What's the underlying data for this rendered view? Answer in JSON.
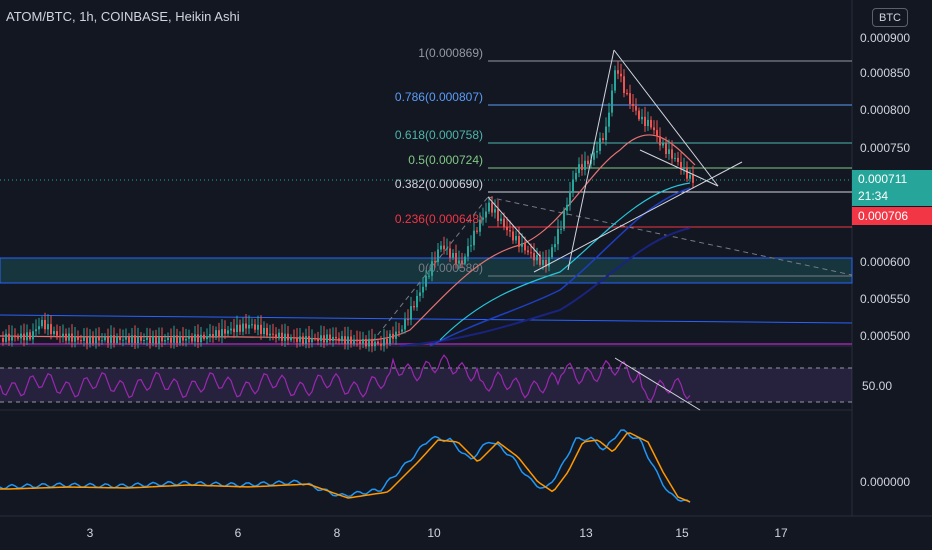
{
  "header": {
    "title": "ATOM/BTC, 1h, COINBASE, Heikin Ashi",
    "currency": "BTC"
  },
  "price_axis": {
    "ticks": [
      "0.000900",
      "0.000850",
      "0.000800",
      "0.000750",
      "0.000600",
      "0.000550",
      "0.000500"
    ],
    "current_price": "0.000711",
    "countdown": "21:34",
    "alert_price": "0.000706"
  },
  "fib_levels": [
    {
      "label": "1(0.000869)",
      "color": "#9598a1"
    },
    {
      "label": "0.786(0.000807)",
      "color": "#5b9cf6"
    },
    {
      "label": "0.618(0.000758)",
      "color": "#4db6ac"
    },
    {
      "label": "0.5(0.000724)",
      "color": "#81c784"
    },
    {
      "label": "0.382(0.000690)",
      "color": "#d1d4dc"
    },
    {
      "label": "0.236(0.000648)",
      "color": "#f23645"
    },
    {
      "label": "0(0.000580)",
      "color": "#787b86"
    }
  ],
  "rsi_panel": {
    "level_label": "50.00",
    "line_color": "#9c27b0"
  },
  "oscillator_panel": {
    "level_label": "0.000000",
    "fast_color": "#2196f3",
    "slow_color": "#ff9800"
  },
  "time_axis": {
    "labels": [
      "3",
      "6",
      "8",
      "10",
      "13",
      "15",
      "17"
    ]
  },
  "colors": {
    "bull": "#26a69a",
    "bear": "#ef5350",
    "background": "#131722",
    "grid": "#2a2e39"
  }
}
